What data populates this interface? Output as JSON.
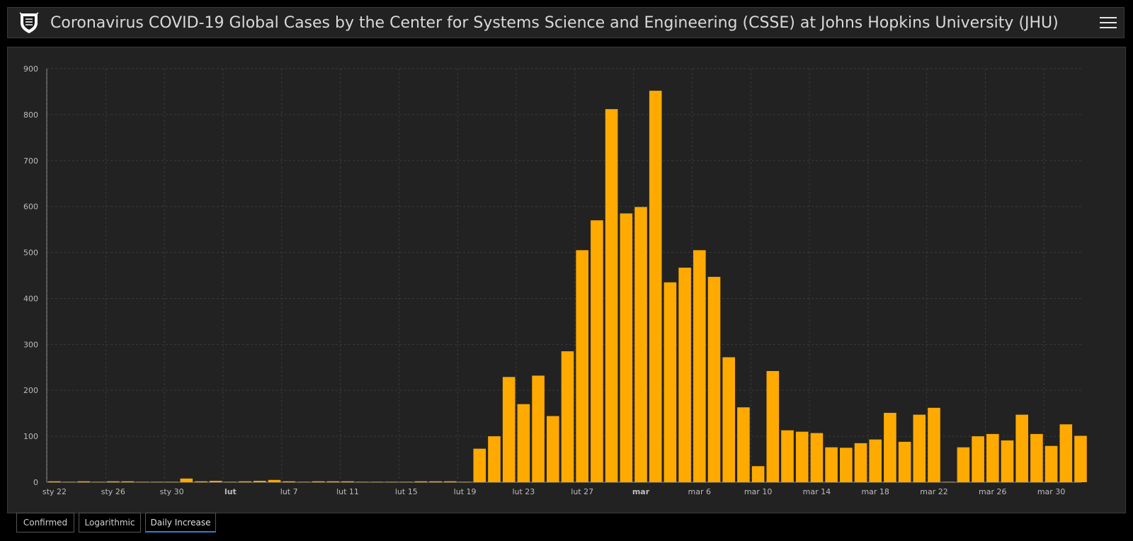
{
  "header": {
    "title": "Coronavirus COVID-19 Global Cases by the Center for Systems Science and Engineering (CSSE) at Johns Hopkins University (JHU)",
    "logo_icon": "jhu-shield-logo-icon",
    "menu_icon": "hamburger-menu-icon"
  },
  "colors": {
    "background": "#000000",
    "panel": "#222222",
    "bar": "#ffaa00",
    "grid": "#3a3a3a",
    "active_tab_underline": "#2f7fd1"
  },
  "tabs": [
    {
      "label": "Confirmed",
      "active": false
    },
    {
      "label": "Logarithmic",
      "active": false
    },
    {
      "label": "Daily Increase",
      "active": true
    }
  ],
  "chart_data": {
    "type": "bar",
    "title": "",
    "xlabel": "",
    "ylabel": "",
    "ylim": [
      0,
      900
    ],
    "yticks": [
      0,
      100,
      200,
      300,
      400,
      500,
      600,
      700,
      800,
      900
    ],
    "grid": true,
    "x_tick_labels": [
      {
        "index": 0,
        "label": "sty 22",
        "bold": false
      },
      {
        "index": 4,
        "label": "sty 26",
        "bold": false
      },
      {
        "index": 8,
        "label": "sty 30",
        "bold": false
      },
      {
        "index": 12,
        "label": "lut",
        "bold": true
      },
      {
        "index": 16,
        "label": "lut 7",
        "bold": false
      },
      {
        "index": 20,
        "label": "lut 11",
        "bold": false
      },
      {
        "index": 24,
        "label": "lut 15",
        "bold": false
      },
      {
        "index": 28,
        "label": "lut 19",
        "bold": false
      },
      {
        "index": 32,
        "label": "lut 23",
        "bold": false
      },
      {
        "index": 36,
        "label": "lut 27",
        "bold": false
      },
      {
        "index": 40,
        "label": "mar",
        "bold": true
      },
      {
        "index": 44,
        "label": "mar 6",
        "bold": false
      },
      {
        "index": 48,
        "label": "mar 10",
        "bold": false
      },
      {
        "index": 52,
        "label": "mar 14",
        "bold": false
      },
      {
        "index": 56,
        "label": "mar 18",
        "bold": false
      },
      {
        "index": 60,
        "label": "mar 22",
        "bold": false
      },
      {
        "index": 64,
        "label": "mar 26",
        "bold": false
      },
      {
        "index": 68,
        "label": "mar 30",
        "bold": false
      }
    ],
    "series": [
      {
        "values": [
          2,
          1,
          2,
          1,
          2,
          2,
          1,
          1,
          1,
          8,
          2,
          3,
          1,
          2,
          3,
          5,
          2,
          1,
          2,
          2,
          2,
          1,
          1,
          1,
          1,
          2,
          2,
          2,
          1,
          73,
          100,
          229,
          170,
          232,
          144,
          285,
          505,
          570,
          812,
          585,
          599,
          852,
          435,
          467,
          505,
          447,
          272,
          163,
          35,
          242,
          113,
          110,
          107,
          76,
          75,
          85,
          93,
          151,
          88,
          147,
          162,
          1,
          76,
          100,
          105,
          91,
          147,
          105,
          79,
          126,
          101
        ]
      }
    ]
  }
}
